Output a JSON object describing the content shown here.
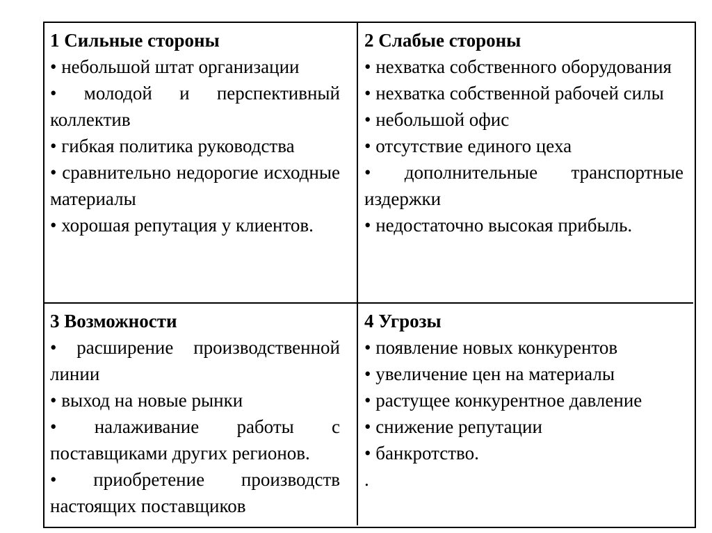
{
  "page": {
    "background_color": "#ffffff",
    "text_color": "#000000",
    "border_color": "#000000"
  },
  "swot_table": {
    "cells": {
      "strengths": {
        "title": "1 Сильные стороны",
        "items": [
          "• небольшой штат организации",
          "• молодой и перспективный коллектив",
          "• гибкая политика руководства",
          "• сравнительно недорогие исходные материалы",
          "• хорошая репутация у клиентов."
        ]
      },
      "weaknesses": {
        "title": "2 Слабые стороны",
        "items": [
          "• нехватка собственного оборудования",
          "• нехватка собственной рабочей силы",
          "• небольшой офис",
          "• отсутствие единого цеха",
          "• дополнительные транспортные издержки",
          "• недостаточно высокая прибыль."
        ]
      },
      "opportunities": {
        "title": "3 Возможности",
        "items": [
          "• расширение производственной линии",
          "• выход на новые рынки",
          "• налаживание работы с поставщиками других регионов.",
          "• приобретение производств настоящих поставщиков"
        ]
      },
      "threats": {
        "title": "4 Угрозы",
        "items": [
          "• появление новых конкурентов",
          "• увеличение цен на материалы",
          "• растущее конкурентное давление",
          "• снижение репутации",
          "• банкротство.",
          "."
        ]
      }
    }
  }
}
